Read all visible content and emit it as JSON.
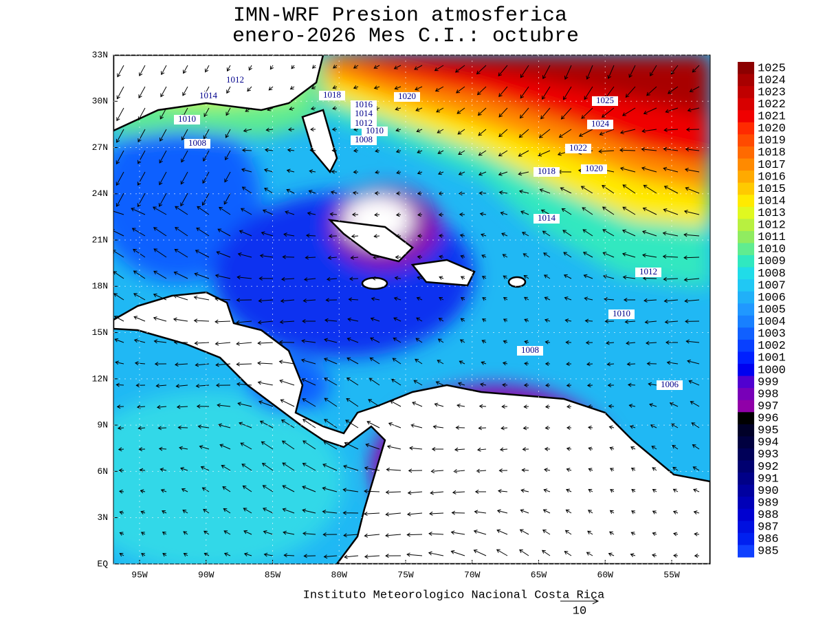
{
  "title": [
    "IMN-WRF  Presion atmosferica",
    "enero-2026 Mes C.I.: octubre"
  ],
  "y_axis_labels": [
    "33N",
    "30N",
    "27N",
    "24N",
    "21N",
    "18N",
    "15N",
    "12N",
    "9N",
    "6N",
    "3N",
    "EQ"
  ],
  "x_axis_labels": [
    "95W",
    "90W",
    "85W",
    "80W",
    "75W",
    "70W",
    "65W",
    "60W",
    "55W"
  ],
  "colorbar": {
    "labels": [
      1025,
      1024,
      1023,
      1022,
      1021,
      1020,
      1019,
      1018,
      1017,
      1016,
      1015,
      1014,
      1013,
      1012,
      1011,
      1010,
      1009,
      1008,
      1007,
      1006,
      1005,
      1004,
      1003,
      1002,
      1001,
      1000,
      999,
      998,
      997,
      996,
      995,
      994,
      993,
      992,
      991,
      990,
      989,
      988,
      987,
      986,
      985
    ],
    "colors": [
      "#8c0000",
      "#a80000",
      "#c00000",
      "#d80000",
      "#f00000",
      "#ff2a00",
      "#ff4a00",
      "#ff6a00",
      "#ff8a00",
      "#ffaa00",
      "#ffca00",
      "#ffea00",
      "#e0f820",
      "#b8f040",
      "#90ec60",
      "#60ec90",
      "#30e8c0",
      "#20dce8",
      "#20c8f4",
      "#20b0f8",
      "#2098ff",
      "#1880ff",
      "#1060ff",
      "#0840ff",
      "#0020ff",
      "#0000f0",
      "#5000d0",
      "#7800b8",
      "#9000a8",
      "#000000",
      "#000028",
      "#000040",
      "#000058",
      "#000070",
      "#000088",
      "#0000a0",
      "#0000b8",
      "#0000d0",
      "#0010e0",
      "#0020f0",
      "#1040ff"
    ]
  },
  "contour_labels": [
    1012,
    1014,
    1010,
    1008,
    1018,
    1020,
    1016,
    1014,
    1012,
    1010,
    1008,
    1025,
    1024,
    1022,
    1020,
    1018,
    1014,
    1012,
    1010,
    1008,
    1006
  ],
  "footer": "Instituto Meteorologico Nacional Costa Rica",
  "vector_scale": "10"
}
